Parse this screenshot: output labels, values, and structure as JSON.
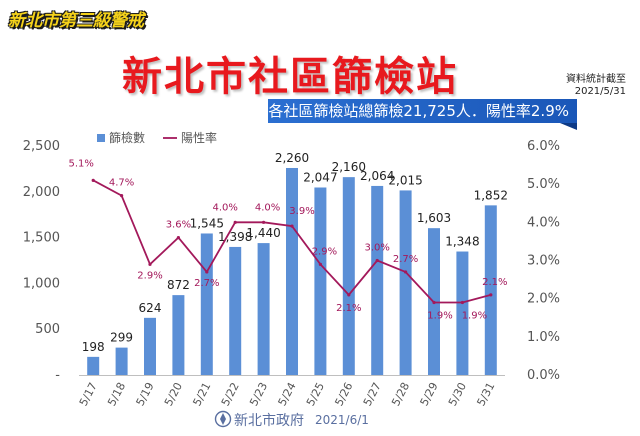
{
  "header": {
    "alert_badge": "新北市第三級警戒",
    "title": "新北市社區篩檢站",
    "data_note_line1": "資料統計截至",
    "data_note_line2": "2021/5/31",
    "banner": "各社區篩檢站總篩檢21,725人．陽性率2.9%"
  },
  "footer": {
    "org_name": "新北市政府",
    "date": "2021/6/1"
  },
  "colors": {
    "bar": "#5b8fd6",
    "line": "#a3195b",
    "title": "#e8191e",
    "banner": "#1f63c6"
  },
  "chart_data": {
    "type": "bar",
    "categories": [
      "5/17",
      "5/18",
      "5/19",
      "5/20",
      "5/21",
      "5/22",
      "5/23",
      "5/24",
      "5/25",
      "5/26",
      "5/27",
      "5/28",
      "5/29",
      "5/30",
      "5/31"
    ],
    "series": [
      {
        "name": "篩檢數",
        "type": "bar",
        "axis": "left",
        "values": [
          198,
          299,
          624,
          872,
          1545,
          1398,
          1440,
          2260,
          2047,
          2160,
          2064,
          2015,
          1603,
          1348,
          1852
        ],
        "labels": [
          "198",
          "299",
          "624",
          "872",
          "1,545",
          "1,398",
          "1,440",
          "2,260",
          "2,047",
          "2,160",
          "2,064",
          "2,015",
          "1,603",
          "1,348",
          "1,852"
        ]
      },
      {
        "name": "陽性率",
        "type": "line",
        "axis": "right",
        "values": [
          5.1,
          4.7,
          2.9,
          3.6,
          2.7,
          4.0,
          4.0,
          3.9,
          2.9,
          2.1,
          3.0,
          2.7,
          1.9,
          1.9,
          2.1
        ],
        "labels": [
          "5.1%",
          "4.7%",
          "2.9%",
          "3.6%",
          "2.7%",
          "4.0%",
          "4.0%",
          "3.9%",
          "2.9%",
          "2.1%",
          "3.0%",
          "2.7%",
          "1.9%",
          "1.9%",
          "2.1%"
        ]
      }
    ],
    "y_left": {
      "range": [
        0,
        2500
      ],
      "ticks": [
        0,
        500,
        1000,
        1500,
        2000,
        2500
      ],
      "tick_labels": [
        "-",
        "500",
        "1,000",
        "1,500",
        "2,000",
        "2,500"
      ]
    },
    "y_right": {
      "range": [
        0,
        6
      ],
      "ticks": [
        0,
        1,
        2,
        3,
        4,
        5,
        6
      ],
      "tick_labels": [
        "0.0%",
        "1.0%",
        "2.0%",
        "3.0%",
        "4.0%",
        "5.0%",
        "6.0%"
      ]
    },
    "legend": {
      "position": "top-left",
      "entries": [
        "篩檢數",
        "陽性率"
      ]
    },
    "grid": false
  }
}
